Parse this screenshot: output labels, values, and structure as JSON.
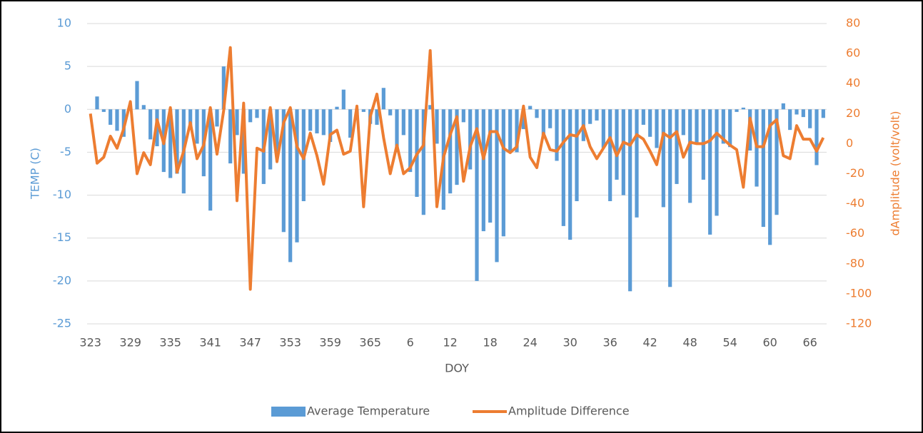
{
  "chart_data": {
    "type": "bar-line",
    "x_label": "DOY",
    "y_label": "TEMP (C)",
    "y2_label": "dAmplitude (volt/volt)",
    "categories": [
      "323",
      null,
      null,
      null,
      null,
      null,
      "329",
      null,
      null,
      null,
      null,
      null,
      "335",
      null,
      null,
      null,
      null,
      null,
      "341",
      null,
      null,
      null,
      null,
      null,
      "347",
      null,
      null,
      null,
      null,
      null,
      "353",
      null,
      null,
      null,
      null,
      null,
      "359",
      null,
      null,
      null,
      null,
      null,
      "365",
      null,
      null,
      null,
      null,
      null,
      "6",
      null,
      null,
      null,
      null,
      null,
      "12",
      null,
      null,
      null,
      null,
      null,
      "18",
      null,
      null,
      null,
      null,
      null,
      "24",
      null,
      null,
      null,
      null,
      null,
      "30",
      null,
      null,
      null,
      null,
      null,
      "36",
      null,
      null,
      null,
      null,
      null,
      "42",
      null,
      null,
      null,
      null,
      null,
      "48",
      null,
      null,
      null,
      null,
      null,
      "54",
      null,
      null,
      null,
      null,
      null,
      "60",
      null,
      null,
      null,
      null,
      null,
      "66",
      null,
      null
    ],
    "series": [
      {
        "name": "Average Temperature",
        "type": "bar",
        "color": "#5b9bd5",
        "axis": "y",
        "values": [
          0,
          1.5,
          -0.3,
          -1.8,
          -2.5,
          -3.2,
          0,
          3.3,
          0.5,
          -3.5,
          -4.3,
          -7.3,
          -8,
          -7.5,
          -9.8,
          -2,
          -4,
          -7.8,
          -11.8,
          -2,
          5,
          -6.3,
          -3,
          -7.5,
          -1.5,
          -1,
          -8.7,
          -7,
          -5.5,
          -14.3,
          -17.8,
          -15.5,
          -10.7,
          -2.5,
          -2.8,
          -3,
          -3.8,
          0.3,
          2.3,
          -3.3,
          -0.5,
          -0.3,
          -1.7,
          -1.8,
          2.5,
          -0.7,
          -5,
          -3,
          -7.3,
          -10.2,
          -12.3,
          0.5,
          -4,
          -11.7,
          -9.8,
          -8.8,
          -1.5,
          -7,
          -20,
          -14.2,
          -13.2,
          -17.8,
          -14.8,
          -5,
          -5,
          -2.3,
          0.4,
          -1,
          -3,
          -2.2,
          -6,
          -13.6,
          -15.2,
          -10.7,
          -3.7,
          -1.7,
          -1.3,
          -4.5,
          -10.7,
          -8.2,
          -10,
          -21.2,
          -12.6,
          -1.8,
          -3.2,
          -4.5,
          -11.4,
          -20.7,
          -8.7,
          -3,
          -10.9,
          -4,
          -8.2,
          -14.6,
          -12.4,
          -4,
          -4.4,
          -0.3,
          0.2,
          -4.8,
          -9,
          -13.7,
          -15.8,
          -12.3,
          0.7,
          -2.4,
          -0.6,
          -0.9,
          -2.2,
          -6.5,
          -1
        ]
      },
      {
        "name": "Amplitude Difference",
        "type": "line",
        "color": "#ed7d31",
        "axis": "y2",
        "values": [
          20,
          -13,
          -9,
          5,
          -3,
          10,
          28,
          -20,
          -6,
          -14,
          16,
          0,
          24,
          -19,
          -5,
          14,
          -10,
          -1,
          24,
          -7,
          22,
          64,
          -38,
          27,
          -97,
          -3,
          -5,
          24,
          -12,
          14,
          24,
          -2,
          -10,
          7,
          -8,
          -27,
          6,
          9,
          -7,
          -5,
          25,
          -42,
          18,
          33,
          4,
          -20,
          -1,
          -20,
          -16,
          -7,
          -1,
          62,
          -42,
          -9,
          6,
          18,
          -25,
          -2,
          10,
          -10,
          8,
          8,
          -3,
          -6,
          -2,
          25,
          -9,
          -16,
          7,
          -4,
          -5,
          1,
          6,
          5,
          12,
          -2,
          -10,
          -3,
          4,
          -8,
          1,
          -1,
          6,
          3,
          -5,
          -14,
          7,
          4,
          8,
          -9,
          1,
          0,
          0,
          2,
          7,
          3,
          -1,
          -4,
          -29,
          17,
          -2,
          -2,
          12,
          16,
          -8,
          -10,
          12,
          3,
          3,
          -5,
          4
        ]
      }
    ],
    "ylim": [
      -25,
      10
    ],
    "yticks": [
      -25,
      -20,
      -15,
      -10,
      -5,
      0,
      5,
      10
    ],
    "y2lim": [
      -120,
      80
    ],
    "y2ticks": [
      -120,
      -100,
      -80,
      -60,
      -40,
      -20,
      0,
      20,
      40,
      60,
      80
    ],
    "grid": true,
    "legend": "bottom"
  }
}
